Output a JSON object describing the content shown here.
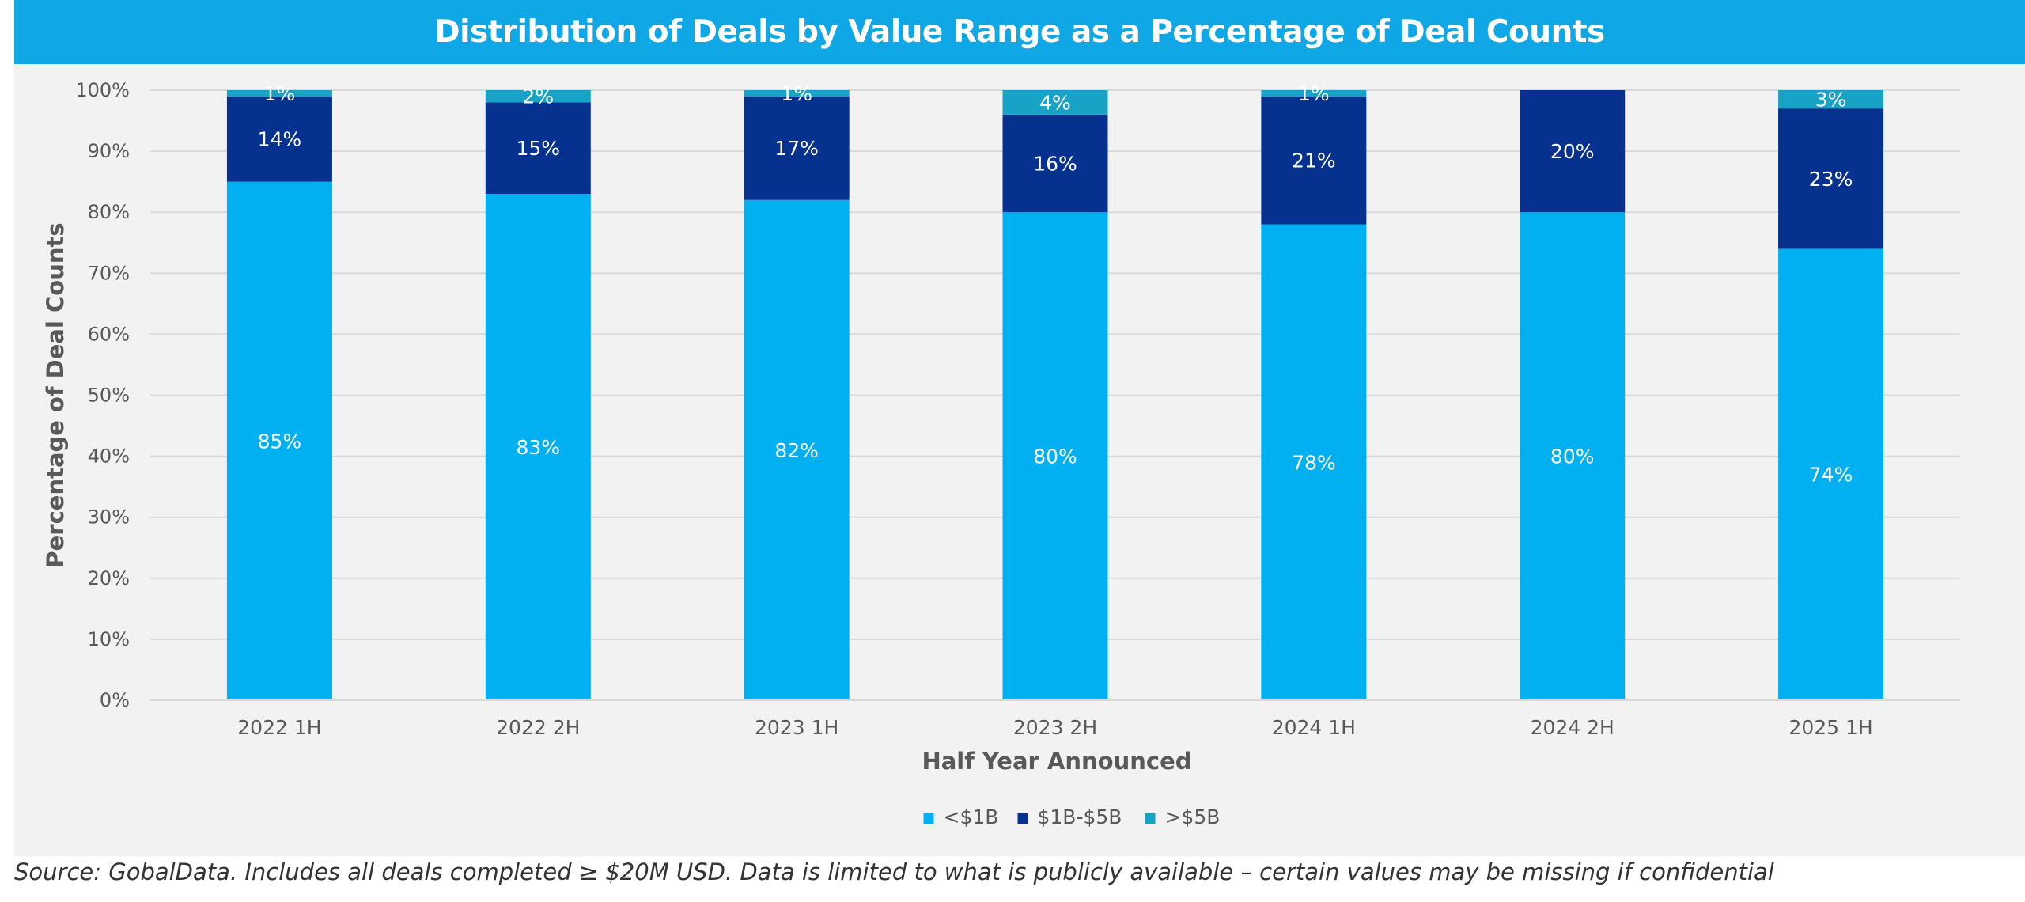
{
  "chart_data": {
    "type": "bar",
    "stacked": true,
    "title": "Distribution of Deals by Value Range as a Percentage of Deal Counts",
    "xlabel": "Half Year Announced",
    "ylabel": "Percentage of Deal Counts",
    "ylim": [
      0,
      100
    ],
    "yticks": [
      "0%",
      "10%",
      "20%",
      "30%",
      "40%",
      "50%",
      "60%",
      "70%",
      "80%",
      "90%",
      "100%"
    ],
    "categories": [
      "2022 1H",
      "2022 2H",
      "2023 1H",
      "2023 2H",
      "2024 1H",
      "2024 2H",
      "2025 1H"
    ],
    "series": [
      {
        "name": "<$1B",
        "color": "#00b0f0",
        "values": [
          85,
          83,
          82,
          80,
          78,
          80,
          74
        ],
        "labels": [
          "85%",
          "83%",
          "82%",
          "80%",
          "78%",
          "80%",
          "74%"
        ]
      },
      {
        "name": "$1B-$5B",
        "color": "#06318f",
        "values": [
          14,
          15,
          17,
          16,
          21,
          20,
          23
        ],
        "labels": [
          "14%",
          "15%",
          "17%",
          "16%",
          "21%",
          "20%",
          "23%"
        ]
      },
      {
        "name": ">$5B",
        "color": "#17a2c6",
        "values": [
          1,
          2,
          1,
          4,
          1,
          0,
          3
        ],
        "labels": [
          "1%",
          "2%",
          "1%",
          "4%",
          "1%",
          "",
          "3%"
        ]
      }
    ],
    "grid": true,
    "legend_position": "bottom"
  },
  "footer": {
    "source": "Source: GobalData. Includes all deals completed ≥ $20M USD. Data is limited to what is publicly available – certain values may be missing if confidential"
  }
}
